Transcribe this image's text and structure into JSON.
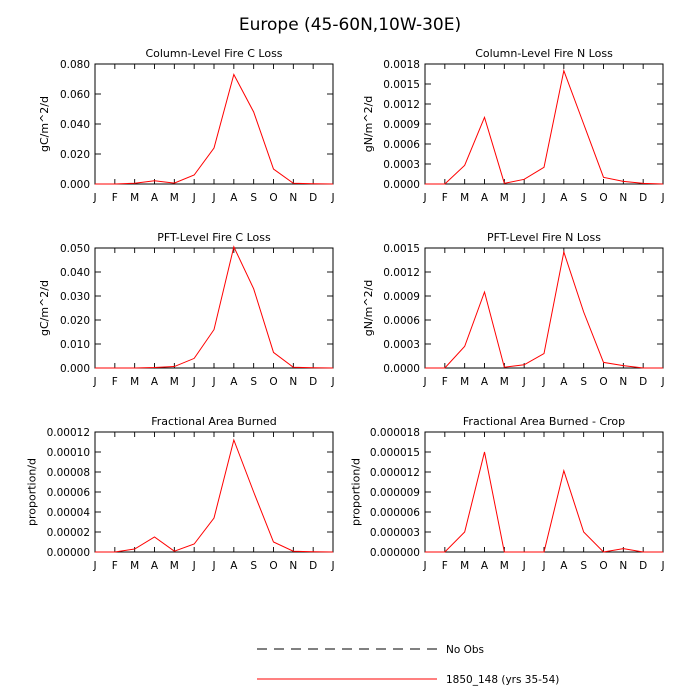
{
  "figure_title": "Europe (45-60N,10W-30E)",
  "months": [
    "J",
    "F",
    "M",
    "A",
    "M",
    "J",
    "J",
    "A",
    "S",
    "O",
    "N",
    "D",
    "J"
  ],
  "legend": {
    "items": [
      {
        "label": "No Obs",
        "style": "dashed",
        "color": "#000000"
      },
      {
        "label": "1850_148 (yrs 35-54)",
        "style": "solid",
        "color": "#ff0000"
      }
    ]
  },
  "chart_data": [
    {
      "type": "line",
      "title": "Column-Level Fire C Loss",
      "ylabel": "gC/m^2/d",
      "ylim": [
        0,
        0.08
      ],
      "yticks": [
        0,
        0.02,
        0.04,
        0.06,
        0.08
      ],
      "ytick_labels": [
        "0.000",
        "0.020",
        "0.040",
        "0.060",
        "0.080"
      ],
      "series": [
        {
          "color": "#ff0000",
          "values": [
            0.0,
            0.0,
            0.0005,
            0.0022,
            0.0006,
            0.006,
            0.024,
            0.073,
            0.048,
            0.01,
            0.0005,
            0.0002,
            0.0
          ]
        }
      ]
    },
    {
      "type": "line",
      "title": "Column-Level Fire N Loss",
      "ylabel": "gN/m^2/d",
      "ylim": [
        0,
        0.0018
      ],
      "yticks": [
        0,
        0.0003,
        0.0006,
        0.0009,
        0.0012,
        0.0015,
        0.0018
      ],
      "ytick_labels": [
        "0.0000",
        "0.0003",
        "0.0006",
        "0.0009",
        "0.0012",
        "0.0015",
        "0.0018"
      ],
      "series": [
        {
          "color": "#ff0000",
          "values": [
            0.0,
            0.0,
            0.00028,
            0.001,
            1e-05,
            7e-05,
            0.00025,
            0.0017,
            0.0009,
            0.0001,
            4e-05,
            1e-05,
            0.0
          ]
        }
      ]
    },
    {
      "type": "line",
      "title": "PFT-Level Fire C Loss",
      "ylabel": "gC/m^2/d",
      "ylim": [
        0,
        0.05
      ],
      "yticks": [
        0,
        0.01,
        0.02,
        0.03,
        0.04,
        0.05
      ],
      "ytick_labels": [
        "0.000",
        "0.010",
        "0.020",
        "0.030",
        "0.040",
        "0.050"
      ],
      "series": [
        {
          "color": "#ff0000",
          "values": [
            0.0,
            0.0,
            0.0,
            0.0002,
            0.0006,
            0.004,
            0.016,
            0.0505,
            0.033,
            0.0065,
            0.0003,
            0.0001,
            0.0
          ]
        }
      ]
    },
    {
      "type": "line",
      "title": "PFT-Level Fire N Loss",
      "ylabel": "gN/m^2/d",
      "ylim": [
        0,
        0.0015
      ],
      "yticks": [
        0,
        0.0003,
        0.0006,
        0.0009,
        0.0012,
        0.0015
      ],
      "ytick_labels": [
        "0.0000",
        "0.0003",
        "0.0006",
        "0.0009",
        "0.0012",
        "0.0015"
      ],
      "series": [
        {
          "color": "#ff0000",
          "values": [
            0.0,
            0.0,
            0.00027,
            0.00095,
            1e-05,
            4e-05,
            0.00018,
            0.00145,
            0.0007,
            7e-05,
            3e-05,
            0.0,
            0.0
          ]
        }
      ]
    },
    {
      "type": "line",
      "title": "Fractional Area Burned",
      "ylabel": "proportion/d",
      "ylim": [
        0,
        0.00012
      ],
      "yticks": [
        0,
        2e-05,
        4e-05,
        6e-05,
        8e-05,
        0.0001,
        0.00012
      ],
      "ytick_labels": [
        "0.00000",
        "0.00002",
        "0.00004",
        "0.00006",
        "0.00008",
        "0.00010",
        "0.00012"
      ],
      "series": [
        {
          "color": "#ff0000",
          "values": [
            0.0,
            0.0,
            3e-06,
            1.5e-05,
            8e-07,
            8e-06,
            3.4e-05,
            0.000112,
            6e-05,
            1e-05,
            8e-07,
            2e-07,
            0.0
          ]
        }
      ]
    },
    {
      "type": "line",
      "title": "Fractional Area Burned - Crop",
      "ylabel": "proportion/d",
      "ylim": [
        0,
        1.8e-05
      ],
      "yticks": [
        0,
        3e-06,
        6e-06,
        9e-06,
        1.2e-05,
        1.5e-05,
        1.8e-05
      ],
      "ytick_labels": [
        "0.000000",
        "0.000003",
        "0.000006",
        "0.000009",
        "0.000012",
        "0.000015",
        "0.000018"
      ],
      "series": [
        {
          "color": "#ff0000",
          "values": [
            0.0,
            0.0,
            3e-06,
            1.5e-05,
            0.0,
            0.0,
            0.0,
            1.22e-05,
            3e-06,
            0.0,
            5e-07,
            0.0,
            0.0
          ]
        }
      ]
    }
  ]
}
